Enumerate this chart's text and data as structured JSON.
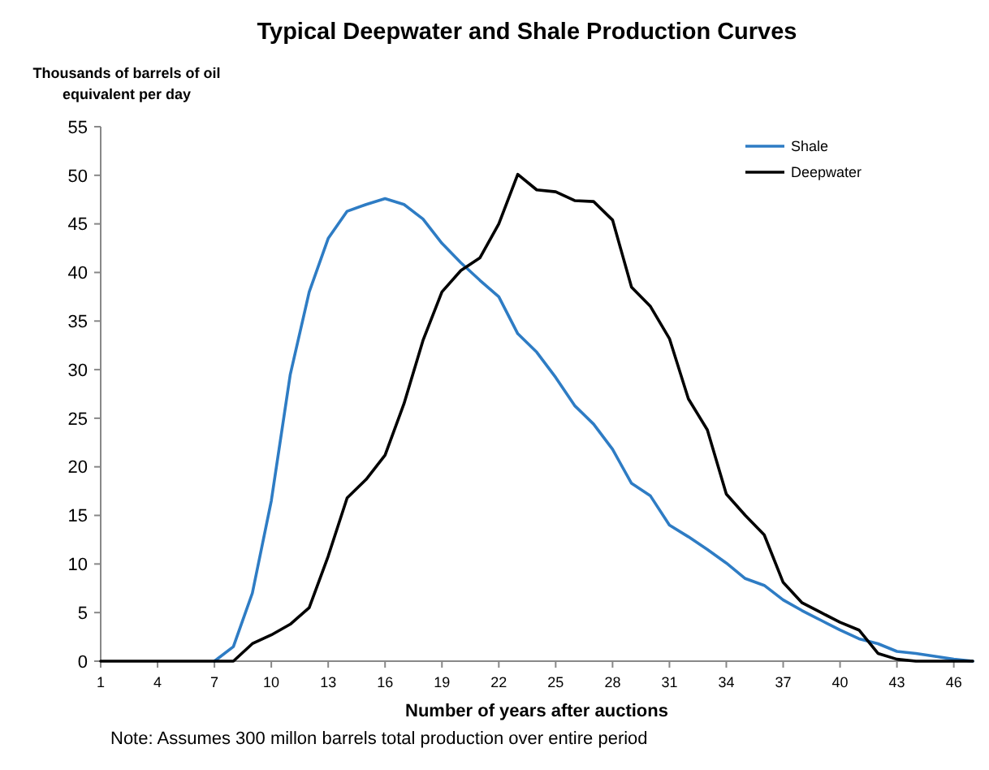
{
  "chart_data": {
    "type": "line",
    "title": "Typical Deepwater and Shale Production Curves",
    "ylabel": "Thousands of barrels of oil equivalent per day",
    "xlabel": "Number of years after auctions",
    "x": [
      1,
      2,
      3,
      4,
      5,
      6,
      7,
      8,
      9,
      10,
      11,
      12,
      13,
      14,
      15,
      16,
      17,
      18,
      19,
      20,
      21,
      22,
      23,
      24,
      25,
      26,
      27,
      28,
      29,
      30,
      31,
      32,
      33,
      34,
      35,
      36,
      37,
      38,
      39,
      40,
      41,
      42,
      43,
      44,
      45,
      46,
      47
    ],
    "series": [
      {
        "name": "Shale",
        "color": "#2e7cc4",
        "values": [
          null,
          null,
          null,
          null,
          null,
          null,
          0,
          1.5,
          7,
          16.5,
          29.5,
          38,
          43.5,
          46.3,
          47,
          47.6,
          47,
          45.5,
          43,
          41,
          39.2,
          37.5,
          33.7,
          31.8,
          29.2,
          26.3,
          24.4,
          21.8,
          18.3,
          17,
          14,
          12.8,
          11.5,
          10.1,
          8.5,
          7.8,
          6.3,
          5.2,
          4.2,
          3.2,
          2.3,
          1.8,
          1,
          0.8,
          0.5,
          0.2,
          0
        ]
      },
      {
        "name": "Deepwater",
        "color": "#000000",
        "values": [
          0,
          0,
          0,
          0,
          0,
          0,
          0,
          0,
          1.8,
          2.7,
          3.8,
          5.5,
          10.8,
          16.8,
          18.7,
          21.2,
          26.5,
          33,
          38,
          40.2,
          41.5,
          45,
          50.1,
          48.5,
          48.3,
          47.4,
          47.3,
          45.4,
          38.5,
          36.5,
          33.2,
          27,
          23.8,
          17.2,
          15,
          13,
          8.1,
          6,
          5,
          4,
          3.2,
          0.8,
          0.2,
          0,
          0,
          0,
          0
        ]
      }
    ],
    "xlim": [
      1,
      47
    ],
    "xticks": [
      1,
      4,
      7,
      10,
      13,
      16,
      19,
      22,
      25,
      28,
      31,
      34,
      37,
      40,
      43,
      46
    ],
    "ylim": [
      0,
      55
    ],
    "yticks": [
      0,
      5,
      10,
      15,
      20,
      25,
      30,
      35,
      40,
      45,
      50,
      55
    ],
    "grid": false,
    "legend": "top right",
    "marker": "none",
    "line_style": "solid",
    "annotations": [
      "Note: Assumes 300 millon barrels total production over entire period"
    ]
  }
}
